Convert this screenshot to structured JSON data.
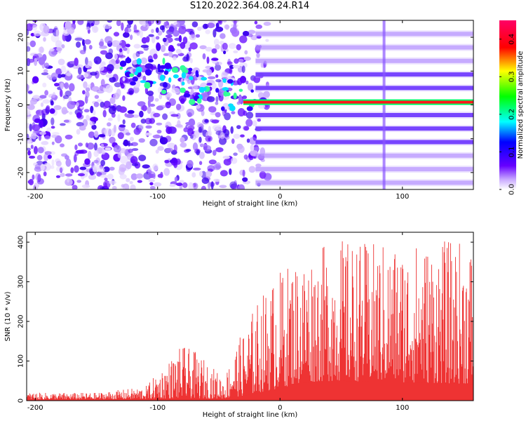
{
  "title": "S120.2022.364.08.24.R14",
  "chart_data": [
    {
      "type": "heatmap",
      "title": "S120.2022.364.08.24.R14",
      "xlabel": "Height of straight line (km)",
      "ylabel": "Frequency (Hz)",
      "xlim": [
        -207,
        158
      ],
      "ylim": [
        -25,
        25
      ],
      "xticks": [
        -200,
        -100,
        0,
        100
      ],
      "yticks": [
        -20,
        -10,
        0,
        10,
        20
      ],
      "colorbar": {
        "label": "Normalized spectral amplitude",
        "range": [
          0,
          0.45
        ],
        "ticks": [
          0.0,
          0.1,
          0.2,
          0.3,
          0.4
        ],
        "colors": [
          "#ffffff",
          "#5500ff",
          "#0000ff",
          "#00ffff",
          "#00ff00",
          "#ffff00",
          "#ff0000",
          "#ff0066"
        ]
      },
      "features": {
        "dominant_line": {
          "frequency_hz": 0.8,
          "from_km": -30,
          "to_km": 158,
          "amplitude": 0.42
        },
        "harmonic_band_frequencies_hz": [
          -23,
          -19,
          -15,
          -11,
          -7,
          -3,
          5,
          9,
          13,
          17,
          21
        ],
        "harmonic_band_start_km": -20,
        "vertical_artifact_km": 85,
        "scatter_region_km": [
          -207,
          -20
        ]
      },
      "grid": false
    },
    {
      "type": "area",
      "xlabel": "Height of straight line (km)",
      "ylabel": "SNR (10 * v/v)",
      "xlim": [
        -207,
        158
      ],
      "ylim": [
        0,
        425
      ],
      "xticks": [
        -200,
        -100,
        0,
        100
      ],
      "yticks": [
        0,
        100,
        200,
        300,
        400
      ],
      "color": "#ee3333",
      "envelope": {
        "x": [
          -207,
          -150,
          -110,
          -100,
          -80,
          -70,
          -60,
          -45,
          -40,
          -30,
          -20,
          -10,
          0,
          10,
          20,
          30,
          50,
          70,
          100,
          130,
          158
        ],
        "peak": [
          20,
          20,
          35,
          70,
          140,
          125,
          100,
          55,
          120,
          175,
          245,
          290,
          330,
          355,
          375,
          385,
          410,
          400,
          400,
          405,
          405
        ],
        "base": [
          3,
          3,
          4,
          5,
          6,
          6,
          5,
          5,
          8,
          12,
          18,
          25,
          30,
          40,
          45,
          48,
          50,
          48,
          46,
          44,
          42
        ]
      },
      "grid": false
    }
  ]
}
